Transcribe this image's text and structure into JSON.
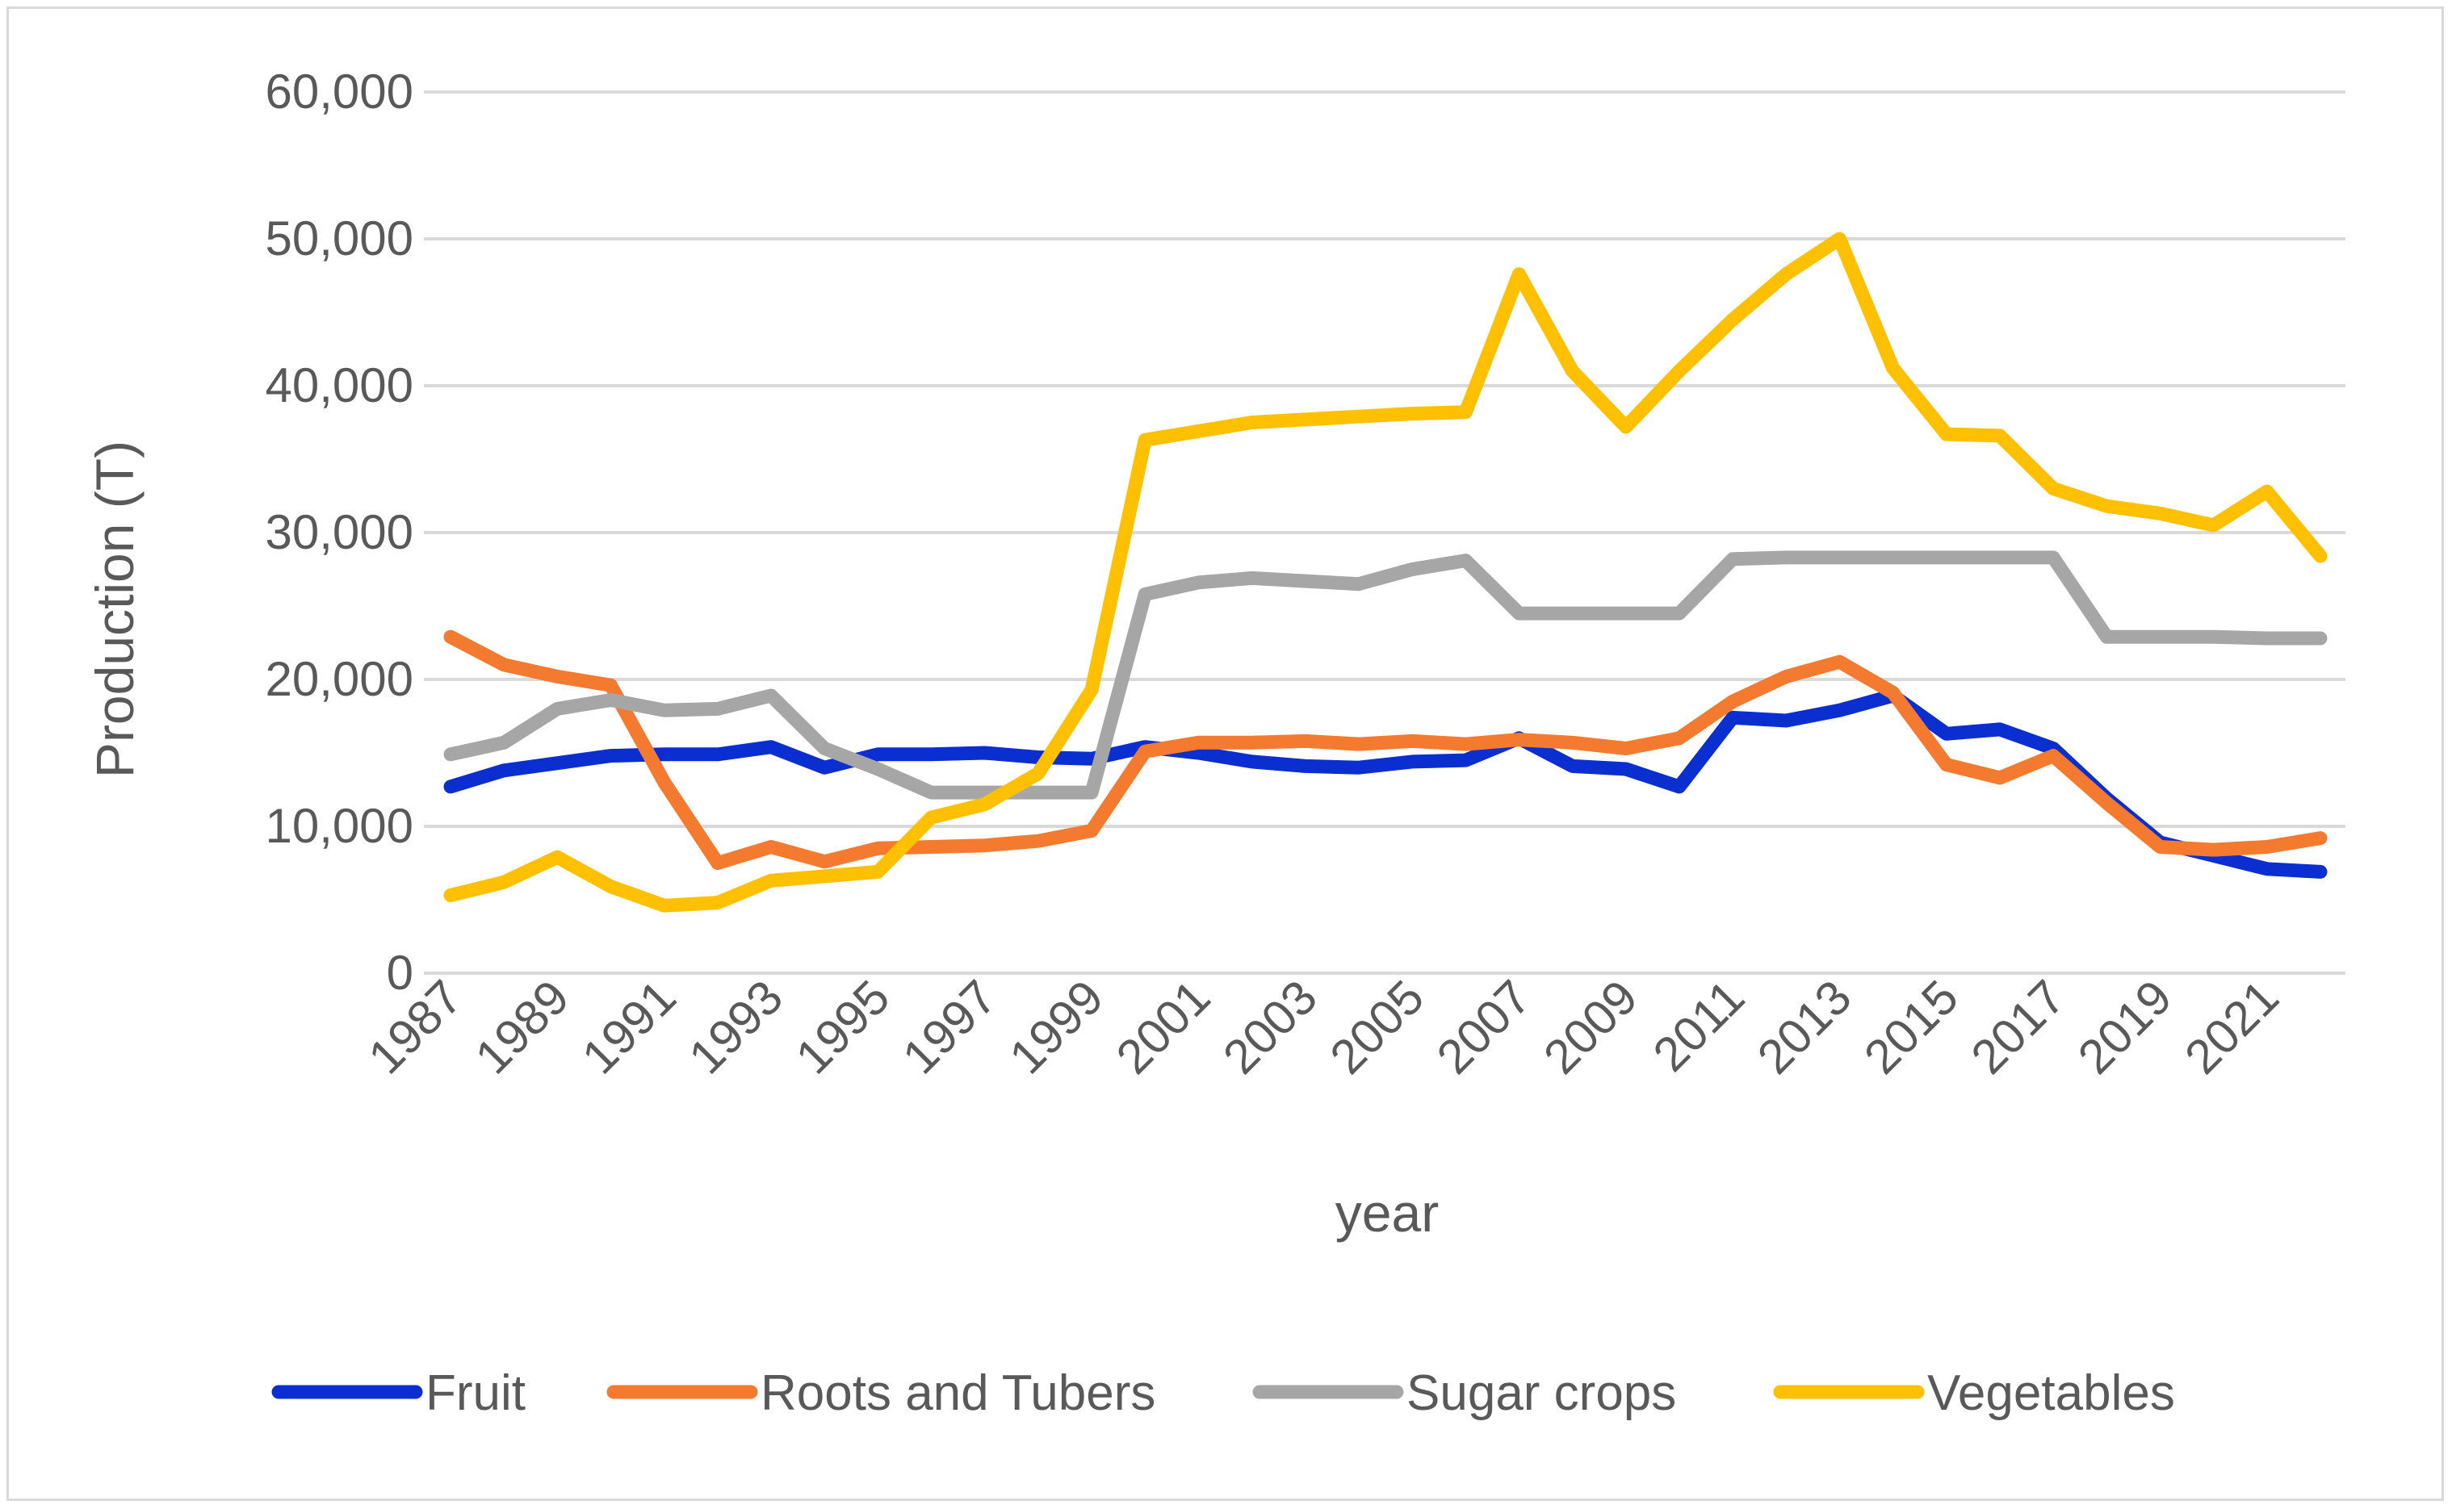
{
  "chart_data": {
    "type": "line",
    "title": "",
    "xlabel": "year",
    "ylabel": "Production (T)",
    "ylim": [
      0,
      60000
    ],
    "yticks": [
      0,
      10000,
      20000,
      30000,
      40000,
      50000,
      60000
    ],
    "ytick_labels": [
      "0",
      "10,000",
      "20,000",
      "30,000",
      "40,000",
      "50,000",
      "60,000"
    ],
    "grid": "horizontal",
    "legend_position": "bottom",
    "x": [
      1987,
      1988,
      1989,
      1990,
      1991,
      1992,
      1993,
      1994,
      1995,
      1996,
      1997,
      1998,
      1999,
      2000,
      2001,
      2002,
      2003,
      2004,
      2005,
      2006,
      2007,
      2008,
      2009,
      2010,
      2011,
      2012,
      2013,
      2014,
      2015,
      2016,
      2017,
      2018,
      2019,
      2020,
      2021,
      2022
    ],
    "xtick_labels": [
      "1987",
      "1989",
      "1991",
      "1993",
      "1995",
      "1997",
      "1999",
      "2001",
      "2003",
      "2005",
      "2007",
      "2009",
      "2011",
      "2013",
      "2015",
      "2017",
      "2019",
      "2021"
    ],
    "series": [
      {
        "name": "Fruit",
        "color": "#0a2ecf",
        "values": [
          12700,
          13800,
          14300,
          14800,
          14900,
          14900,
          15400,
          14000,
          14900,
          14900,
          15000,
          14700,
          14600,
          15400,
          15000,
          14400,
          14100,
          14000,
          14400,
          14500,
          16000,
          14100,
          13900,
          12700,
          17400,
          17200,
          17900,
          18900,
          16300,
          16600,
          15300,
          11900,
          8900,
          8000,
          7100,
          6900
        ]
      },
      {
        "name": "Roots and Tubers",
        "color": "#f37a2f",
        "values": [
          22900,
          21000,
          20200,
          19600,
          13000,
          7500,
          8600,
          7600,
          8500,
          8600,
          8700,
          9000,
          9700,
          15100,
          15700,
          15700,
          15800,
          15600,
          15800,
          15600,
          15900,
          15700,
          15300,
          16000,
          18500,
          20200,
          21200,
          19100,
          14200,
          13300,
          14800,
          11600,
          8600,
          8400,
          8600,
          9200
        ]
      },
      {
        "name": "Sugar crops",
        "color": "#a6a6a6",
        "values": [
          14900,
          15700,
          18000,
          18600,
          17900,
          18000,
          18900,
          15300,
          13900,
          12300,
          12300,
          12300,
          12300,
          25800,
          26600,
          26900,
          26700,
          26500,
          27500,
          28100,
          24500,
          24500,
          24500,
          24500,
          28200,
          28300,
          28300,
          28300,
          28300,
          28300,
          28300,
          22900,
          22900,
          22900,
          22800,
          22800
        ]
      },
      {
        "name": "Vegetables",
        "color": "#ffc000",
        "values": [
          5300,
          6200,
          7900,
          5900,
          4600,
          4800,
          6300,
          6600,
          6900,
          10600,
          11500,
          13600,
          19300,
          36300,
          36900,
          37500,
          37700,
          37900,
          38100,
          38200,
          47600,
          41000,
          37200,
          41000,
          44500,
          47600,
          50000,
          41200,
          36700,
          36600,
          33000,
          31800,
          31300,
          30500,
          32800,
          28400
        ]
      }
    ]
  }
}
